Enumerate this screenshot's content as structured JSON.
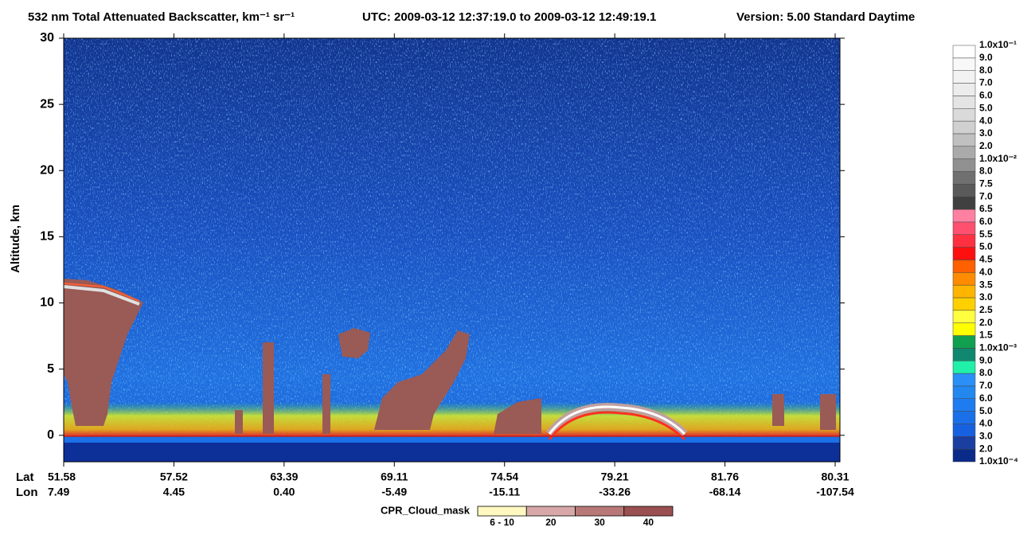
{
  "chart_data": {
    "type": "heatmap",
    "title": "532 nm Total Attenuated Backscatter, km⁻¹ sr⁻¹",
    "subtitle": "UTC:  2009-03-12 12:37:19.0  to  2009-03-12 12:49:19.1",
    "version": "Version: 5.00  Standard  Daytime",
    "y_label": "Altitude, km",
    "ylim": [
      -2,
      30
    ],
    "yticks": [
      0,
      5,
      10,
      15,
      20,
      25,
      30
    ],
    "x_row_labels": [
      "Lat",
      "Lon"
    ],
    "lat": [
      "51.58",
      "57.52",
      "63.39",
      "69.11",
      "74.54",
      "79.21",
      "81.76",
      "80.31"
    ],
    "lon": [
      "7.49",
      "4.45",
      "0.40",
      "-5.49",
      "-15.11",
      "-33.26",
      "-68.14",
      "-107.54"
    ],
    "colorbar": {
      "labels": [
        "1.0x10⁻⁴",
        "2.0",
        "3.0",
        "4.0",
        "5.0",
        "6.0",
        "7.0",
        "8.0",
        "9.0",
        "1.0x10⁻³",
        "1.5",
        "2.0",
        "2.5",
        "3.0",
        "3.5",
        "4.0",
        "4.5",
        "5.0",
        "5.5",
        "6.0",
        "6.5",
        "7.0",
        "7.5",
        "8.0",
        "1.0x10⁻²",
        "2.0",
        "3.0",
        "4.0",
        "5.0",
        "6.0",
        "7.0",
        "8.0",
        "9.0",
        "1.0x10⁻¹"
      ],
      "colors": [
        "#0a2a8a",
        "#1a3fa0",
        "#1760e0",
        "#1a70e8",
        "#1e7cf0",
        "#2288f0",
        "#2a90f8",
        "#20f0a8",
        "#108870",
        "#10a050",
        "#ffff00",
        "#ffff40",
        "#ffd000",
        "#ffb400",
        "#ff8c00",
        "#ff6000",
        "#ff1010",
        "#ff3040",
        "#ff5070",
        "#ff80a0",
        "#404040",
        "#5a5a5a",
        "#707070",
        "#909090",
        "#aaaaaa",
        "#c0c0c0",
        "#d0d0d0",
        "#dadada",
        "#e4e4e4",
        "#ececec",
        "#f2f2f2",
        "#f8f8f8",
        "#ffffff"
      ]
    },
    "cloud_mask": {
      "title": "CPR_Cloud_mask",
      "labels": [
        "6 - 10",
        "20",
        "30",
        "40"
      ],
      "colors": [
        "#fff8c0",
        "#d8a8a8",
        "#b87878",
        "#9a5050"
      ]
    }
  }
}
